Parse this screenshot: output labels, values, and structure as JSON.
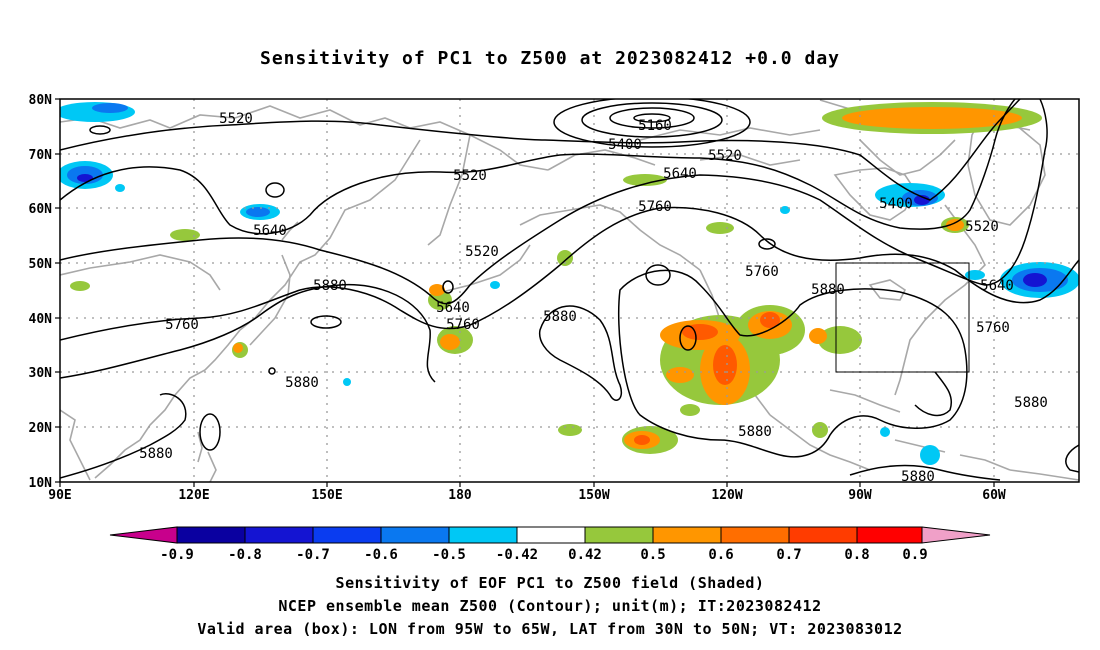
{
  "title": "Sensitivity of PC1 to Z500 at 2023082412 +0.0 day",
  "map": {
    "lat_labels": [
      "80N",
      "70N",
      "60N",
      "50N",
      "40N",
      "30N",
      "20N",
      "10N"
    ],
    "lon_labels": [
      "90E",
      "120E",
      "150E",
      "180",
      "150W",
      "120W",
      "90W",
      "60W"
    ],
    "valid_box": {
      "lon_min": "95W",
      "lon_max": "65W",
      "lat_min": "30N",
      "lat_max": "50N"
    },
    "contour_labels": [
      {
        "text": "5520",
        "id": "c1"
      },
      {
        "text": "5160",
        "id": "c2"
      },
      {
        "text": "5400",
        "id": "c3"
      },
      {
        "text": "5520",
        "id": "c4"
      },
      {
        "text": "5520",
        "id": "c5"
      },
      {
        "text": "5640",
        "id": "c6"
      },
      {
        "text": "5760",
        "id": "c7"
      },
      {
        "text": "5400",
        "id": "c8"
      },
      {
        "text": "5520",
        "id": "c9"
      },
      {
        "text": "5640",
        "id": "c10"
      },
      {
        "text": "5520",
        "id": "c11"
      },
      {
        "text": "5760",
        "id": "c12"
      },
      {
        "text": "5880",
        "id": "c13"
      },
      {
        "text": "5640",
        "id": "c14"
      },
      {
        "text": "5760",
        "id": "c15"
      },
      {
        "text": "5760",
        "id": "c16"
      },
      {
        "text": "5880",
        "id": "c17"
      },
      {
        "text": "5880",
        "id": "c18"
      },
      {
        "text": "5640",
        "id": "c19"
      },
      {
        "text": "5760",
        "id": "c20"
      },
      {
        "text": "5880",
        "id": "c21"
      },
      {
        "text": "5880",
        "id": "c22"
      },
      {
        "text": "5880",
        "id": "c23"
      },
      {
        "text": "5880",
        "id": "c24"
      },
      {
        "text": "5880",
        "id": "c25"
      }
    ]
  },
  "colorbar": {
    "ticks": [
      "-0.9",
      "-0.8",
      "-0.7",
      "-0.6",
      "-0.5",
      "-0.42",
      "0.42",
      "0.5",
      "0.6",
      "0.7",
      "0.8",
      "0.9"
    ],
    "colors": [
      "#c8008c",
      "#0a00a0",
      "#1414d2",
      "#0a3cf0",
      "#0a78f0",
      "#00c8f5",
      "#ffffff",
      "#96c83c",
      "#ff9600",
      "#ff6e00",
      "#ff3c00",
      "#ff0000",
      "#f0a0c8"
    ]
  },
  "footer": {
    "line1": "Sensitivity of EOF PC1 to Z500 field (Shaded)",
    "line2": "NCEP ensemble mean Z500 (Contour); unit(m); IT:2023082412",
    "line3": "Valid area (box): LON from 95W to 65W, LAT from 30N to 50N; VT: 2023083012"
  }
}
